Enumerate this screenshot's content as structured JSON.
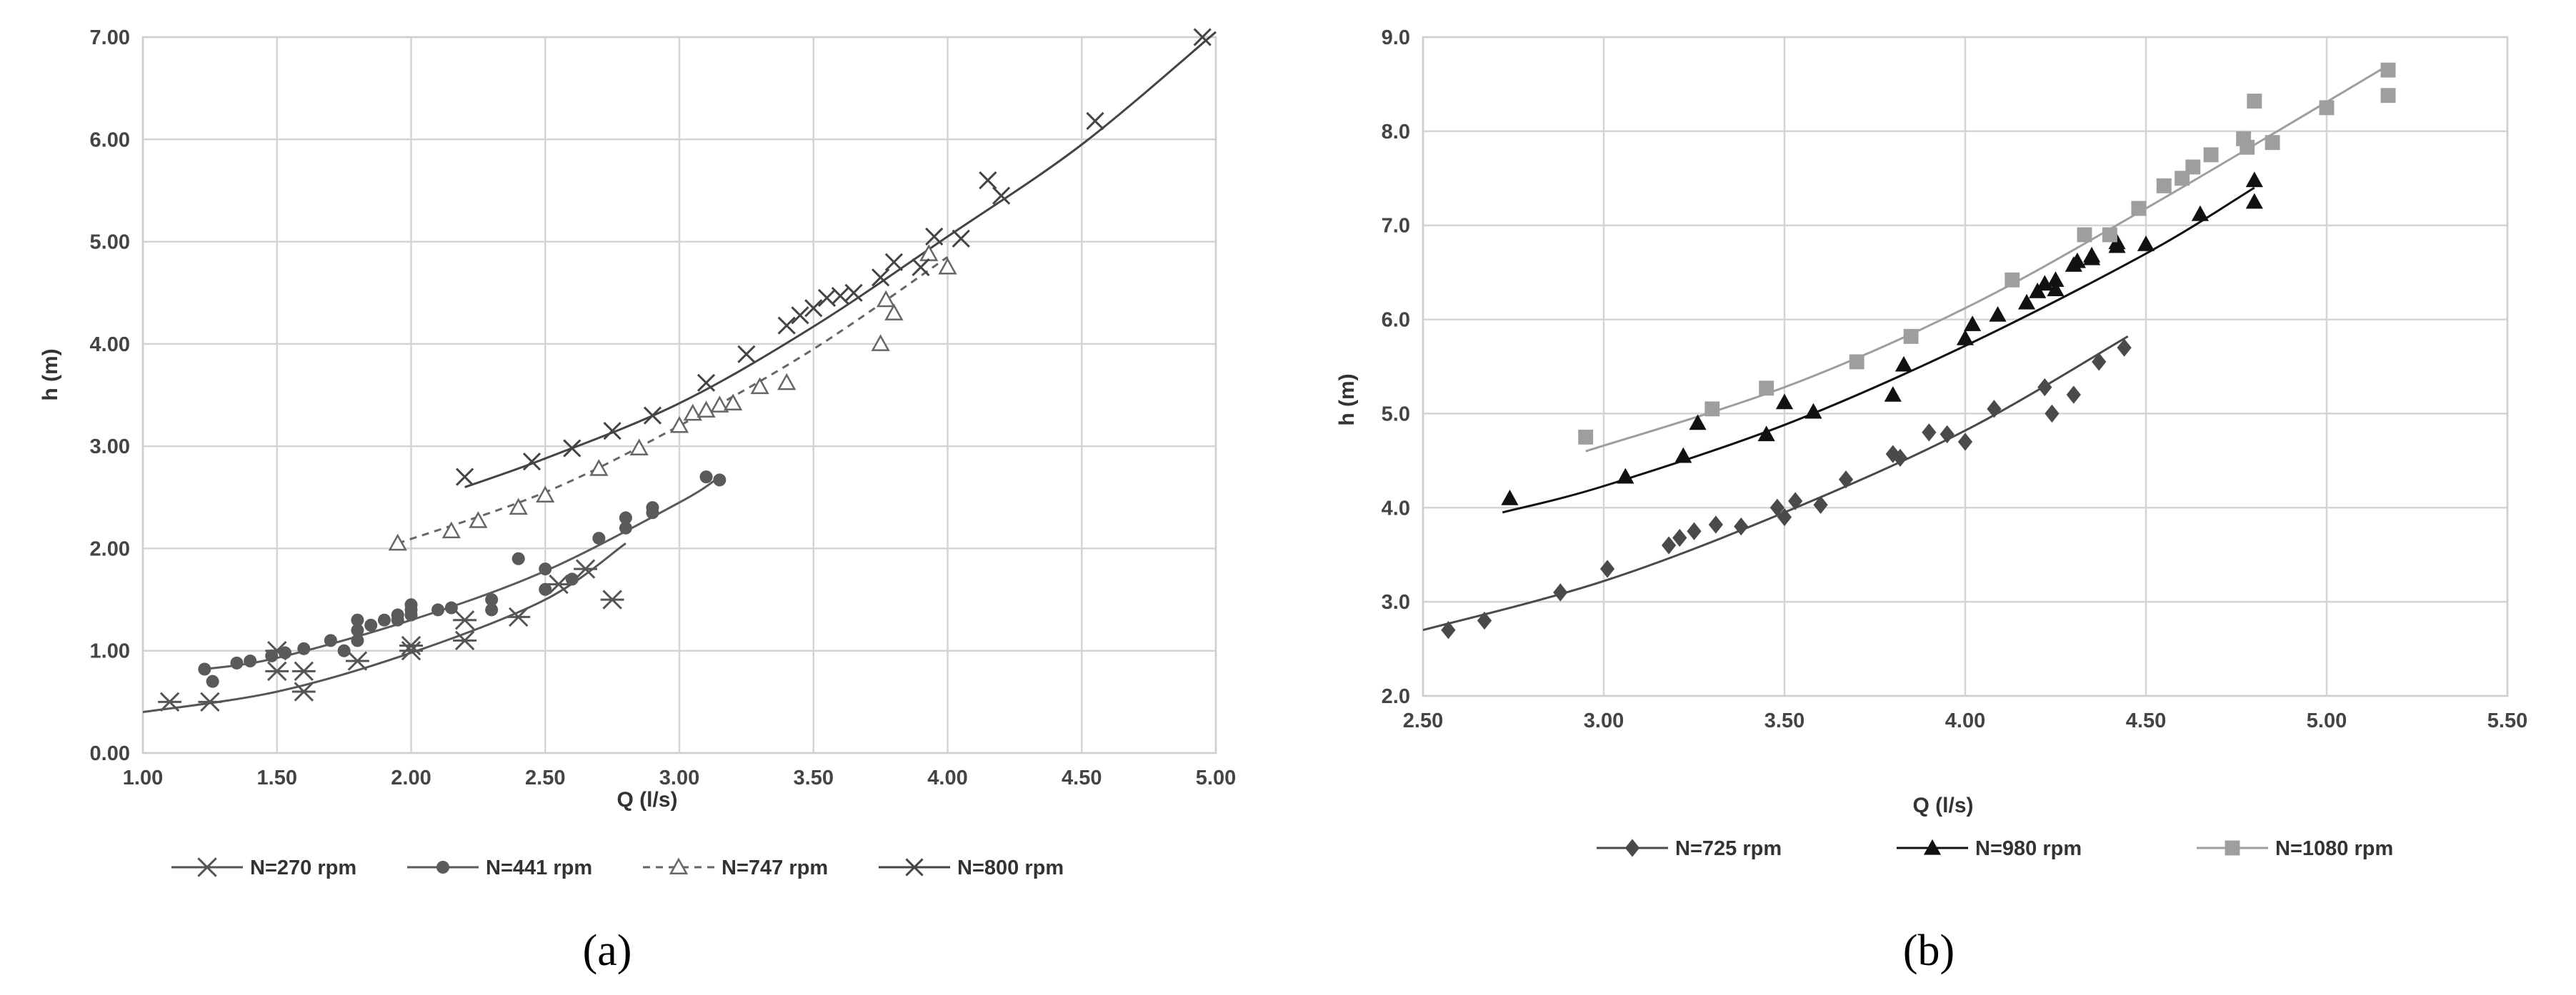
{
  "captions": [
    "(a)",
    "(b)"
  ],
  "chart_data": [
    {
      "type": "scatter",
      "xlabel": "Q (l/s)",
      "ylabel": "h (m)",
      "xlim": [
        1.0,
        5.0
      ],
      "ylim": [
        0.0,
        7.0
      ],
      "x_ticks": [
        "1.00",
        "1.50",
        "2.00",
        "2.50",
        "3.00",
        "3.50",
        "4.00",
        "4.50",
        "5.00"
      ],
      "y_ticks": [
        "0.00",
        "1.00",
        "2.00",
        "3.00",
        "4.00",
        "5.00",
        "6.00",
        "7.00"
      ],
      "grid": true,
      "legend": "bottom",
      "series": [
        {
          "name": "N=270 rpm",
          "marker": "asterisk",
          "color": "#555555",
          "dash": "solid",
          "points": [
            [
              1.1,
              0.5
            ],
            [
              1.25,
              0.5
            ],
            [
              1.5,
              0.8
            ],
            [
              1.5,
              1.0
            ],
            [
              1.6,
              0.6
            ],
            [
              1.6,
              0.8
            ],
            [
              1.8,
              0.9
            ],
            [
              2.0,
              1.0
            ],
            [
              2.0,
              1.05
            ],
            [
              2.2,
              1.1
            ],
            [
              2.2,
              1.3
            ],
            [
              2.4,
              1.33
            ],
            [
              2.55,
              1.65
            ],
            [
              2.65,
              1.8
            ],
            [
              2.75,
              1.5
            ]
          ],
          "fit": [
            [
              1.0,
              0.4
            ],
            [
              1.5,
              0.6
            ],
            [
              2.0,
              0.98
            ],
            [
              2.5,
              1.5
            ],
            [
              2.8,
              2.05
            ]
          ]
        },
        {
          "name": "N=441 rpm",
          "marker": "circle",
          "color": "#5a5a5a",
          "dash": "solid",
          "points": [
            [
              1.23,
              0.82
            ],
            [
              1.26,
              0.7
            ],
            [
              1.35,
              0.88
            ],
            [
              1.4,
              0.9
            ],
            [
              1.48,
              0.95
            ],
            [
              1.53,
              0.98
            ],
            [
              1.6,
              1.02
            ],
            [
              1.7,
              1.1
            ],
            [
              1.75,
              1.0
            ],
            [
              1.8,
              1.2
            ],
            [
              1.8,
              1.3
            ],
            [
              1.8,
              1.1
            ],
            [
              1.85,
              1.25
            ],
            [
              1.9,
              1.3
            ],
            [
              1.95,
              1.3
            ],
            [
              1.95,
              1.35
            ],
            [
              2.0,
              1.35
            ],
            [
              2.0,
              1.4
            ],
            [
              2.0,
              1.45
            ],
            [
              2.1,
              1.4
            ],
            [
              2.15,
              1.42
            ],
            [
              2.3,
              1.4
            ],
            [
              2.3,
              1.5
            ],
            [
              2.4,
              1.9
            ],
            [
              2.5,
              1.6
            ],
            [
              2.5,
              1.8
            ],
            [
              2.6,
              1.7
            ],
            [
              2.7,
              2.1
            ],
            [
              2.8,
              2.2
            ],
            [
              2.8,
              2.3
            ],
            [
              2.9,
              2.35
            ],
            [
              2.9,
              2.4
            ],
            [
              3.1,
              2.7
            ],
            [
              3.15,
              2.67
            ]
          ],
          "fit": [
            [
              1.23,
              0.82
            ],
            [
              1.5,
              0.93
            ],
            [
              2.0,
              1.3
            ],
            [
              2.5,
              1.78
            ],
            [
              3.0,
              2.45
            ],
            [
              3.15,
              2.7
            ]
          ]
        },
        {
          "name": "N=747 rpm",
          "marker": "triangle-open",
          "color": "#666666",
          "dash": "dashed",
          "points": [
            [
              1.95,
              2.05
            ],
            [
              2.15,
              2.17
            ],
            [
              2.25,
              2.27
            ],
            [
              2.4,
              2.4
            ],
            [
              2.5,
              2.52
            ],
            [
              2.7,
              2.78
            ],
            [
              2.85,
              2.98
            ],
            [
              3.0,
              3.2
            ],
            [
              3.05,
              3.32
            ],
            [
              3.1,
              3.35
            ],
            [
              3.15,
              3.4
            ],
            [
              3.2,
              3.42
            ],
            [
              3.3,
              3.58
            ],
            [
              3.4,
              3.62
            ],
            [
              3.75,
              4.0
            ],
            [
              3.77,
              4.43
            ],
            [
              3.8,
              4.3
            ],
            [
              3.93,
              4.88
            ],
            [
              4.0,
              4.75
            ]
          ],
          "fit": [
            [
              1.95,
              2.05
            ],
            [
              2.5,
              2.55
            ],
            [
              3.0,
              3.2
            ],
            [
              3.5,
              3.95
            ],
            [
              4.0,
              4.85
            ]
          ]
        },
        {
          "name": "N=800 rpm",
          "marker": "x",
          "color": "#444444",
          "dash": "solid",
          "points": [
            [
              2.2,
              2.7
            ],
            [
              2.45,
              2.85
            ],
            [
              2.6,
              2.98
            ],
            [
              2.75,
              3.15
            ],
            [
              2.9,
              3.3
            ],
            [
              3.1,
              3.62
            ],
            [
              3.25,
              3.9
            ],
            [
              3.4,
              4.18
            ],
            [
              3.45,
              4.28
            ],
            [
              3.5,
              4.35
            ],
            [
              3.55,
              4.45
            ],
            [
              3.6,
              4.47
            ],
            [
              3.65,
              4.5
            ],
            [
              3.75,
              4.65
            ],
            [
              3.8,
              4.8
            ],
            [
              3.9,
              4.75
            ],
            [
              3.95,
              5.05
            ],
            [
              4.05,
              5.03
            ],
            [
              4.15,
              5.6
            ],
            [
              4.2,
              5.45
            ],
            [
              4.55,
              6.18
            ],
            [
              4.95,
              7.0
            ]
          ],
          "fit": [
            [
              2.2,
              2.6
            ],
            [
              2.5,
              2.88
            ],
            [
              3.0,
              3.42
            ],
            [
              3.5,
              4.17
            ],
            [
              4.0,
              5.05
            ],
            [
              4.5,
              5.95
            ],
            [
              5.0,
              7.05
            ]
          ]
        }
      ]
    },
    {
      "type": "scatter",
      "xlabel": "Q (l/s)",
      "ylabel": "h (m)",
      "xlim": [
        2.5,
        5.5
      ],
      "ylim": [
        2.0,
        9.0
      ],
      "x_ticks": [
        "2.50",
        "3.00",
        "3.50",
        "4.00",
        "4.50",
        "5.00",
        "5.50"
      ],
      "y_ticks": [
        "2.0",
        "3.0",
        "4.0",
        "5.0",
        "6.0",
        "7.0",
        "8.0",
        "9.0"
      ],
      "grid": true,
      "legend": "bottom",
      "series": [
        {
          "name": "N=725 rpm",
          "marker": "diamond",
          "color": "#4a4a4a",
          "dash": "solid",
          "points": [
            [
              2.57,
              2.7
            ],
            [
              2.67,
              2.8
            ],
            [
              2.88,
              3.1
            ],
            [
              3.01,
              3.35
            ],
            [
              3.18,
              3.6
            ],
            [
              3.21,
              3.68
            ],
            [
              3.25,
              3.75
            ],
            [
              3.31,
              3.82
            ],
            [
              3.38,
              3.8
            ],
            [
              3.48,
              4.0
            ],
            [
              3.5,
              3.9
            ],
            [
              3.53,
              4.07
            ],
            [
              3.6,
              4.03
            ],
            [
              3.67,
              4.3
            ],
            [
              3.8,
              4.57
            ],
            [
              3.82,
              4.53
            ],
            [
              3.9,
              4.8
            ],
            [
              3.95,
              4.78
            ],
            [
              4.0,
              4.7
            ],
            [
              4.08,
              5.05
            ],
            [
              4.22,
              5.28
            ],
            [
              4.24,
              5.0
            ],
            [
              4.3,
              5.2
            ],
            [
              4.37,
              5.55
            ],
            [
              4.44,
              5.7
            ]
          ],
          "fit": [
            [
              2.5,
              2.7
            ],
            [
              3.0,
              3.22
            ],
            [
              3.5,
              3.95
            ],
            [
              4.0,
              4.82
            ],
            [
              4.45,
              5.82
            ]
          ]
        },
        {
          "name": "N=980 rpm",
          "marker": "triangle",
          "color": "#111111",
          "dash": "solid",
          "points": [
            [
              2.74,
              4.1
            ],
            [
              3.06,
              4.33
            ],
            [
              3.22,
              4.55
            ],
            [
              3.26,
              4.9
            ],
            [
              3.45,
              4.78
            ],
            [
              3.5,
              5.12
            ],
            [
              3.58,
              5.02
            ],
            [
              3.8,
              5.2
            ],
            [
              3.83,
              5.52
            ],
            [
              4.0,
              5.8
            ],
            [
              4.02,
              5.95
            ],
            [
              4.09,
              6.05
            ],
            [
              4.17,
              6.18
            ],
            [
              4.2,
              6.3
            ],
            [
              4.22,
              6.38
            ],
            [
              4.25,
              6.32
            ],
            [
              4.25,
              6.42
            ],
            [
              4.3,
              6.58
            ],
            [
              4.31,
              6.62
            ],
            [
              4.35,
              6.65
            ],
            [
              4.35,
              6.68
            ],
            [
              4.42,
              6.78
            ],
            [
              4.42,
              6.82
            ],
            [
              4.5,
              6.8
            ],
            [
              4.65,
              7.12
            ],
            [
              4.8,
              7.25
            ],
            [
              4.8,
              7.48
            ]
          ],
          "fit": [
            [
              2.72,
              3.95
            ],
            [
              3.0,
              4.23
            ],
            [
              3.5,
              4.88
            ],
            [
              4.0,
              5.72
            ],
            [
              4.5,
              6.7
            ],
            [
              4.8,
              7.4
            ]
          ]
        },
        {
          "name": "N=1080 rpm",
          "marker": "square",
          "color": "#9e9e9e",
          "dash": "solid",
          "points": [
            [
              2.95,
              4.75
            ],
            [
              3.3,
              5.05
            ],
            [
              3.45,
              5.27
            ],
            [
              3.7,
              5.55
            ],
            [
              3.85,
              5.82
            ],
            [
              4.13,
              6.42
            ],
            [
              4.33,
              6.9
            ],
            [
              4.4,
              6.9
            ],
            [
              4.48,
              7.18
            ],
            [
              4.55,
              7.42
            ],
            [
              4.6,
              7.5
            ],
            [
              4.63,
              7.62
            ],
            [
              4.68,
              7.75
            ],
            [
              4.77,
              7.92
            ],
            [
              4.78,
              7.83
            ],
            [
              4.8,
              8.32
            ],
            [
              4.85,
              7.88
            ],
            [
              5.0,
              8.25
            ],
            [
              5.17,
              8.65
            ],
            [
              5.17,
              8.38
            ]
          ],
          "fit": [
            [
              2.95,
              4.6
            ],
            [
              3.5,
              5.28
            ],
            [
              4.0,
              6.12
            ],
            [
              4.5,
              7.18
            ],
            [
              5.17,
              8.7
            ]
          ]
        }
      ]
    }
  ]
}
